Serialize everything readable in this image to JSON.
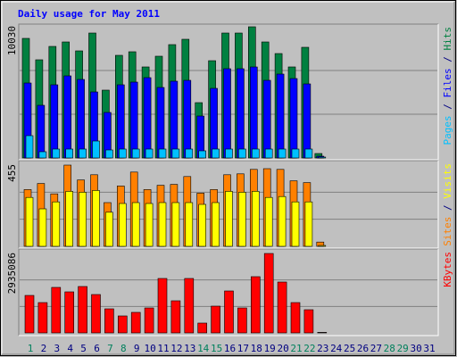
{
  "title": "Daily usage for May 2011",
  "chart_data": [
    {
      "type": "bar",
      "ylim": [
        0,
        10030
      ],
      "yticks": [
        10030
      ],
      "series": [
        {
          "name": "Pages",
          "color": "#00C0FF",
          "values": [
            1706,
            478,
            682,
            682,
            682,
            1296,
            614,
            682,
            682,
            682,
            682,
            682,
            682,
            546,
            682,
            682,
            682,
            682,
            682,
            682,
            682,
            682,
            68,
            0,
            0,
            0,
            0,
            0,
            0,
            0,
            0
          ]
        },
        {
          "name": "Files",
          "color": "#0000FF",
          "values": [
            5731,
            4026,
            5595,
            6277,
            6004,
            5049,
            3480,
            5595,
            5800,
            6141,
            5390,
            5868,
            5936,
            3207,
            5322,
            6823,
            6823,
            6959,
            5936,
            6414,
            6072,
            5663,
            136,
            0,
            0,
            0,
            0,
            0,
            0,
            0,
            0
          ]
        },
        {
          "name": "Hits",
          "color": "#008040",
          "values": [
            9143,
            7506,
            8529,
            8870,
            8188,
            9552,
            5186,
            7847,
            8120,
            6960,
            7779,
            8666,
            9075,
            4230,
            7437,
            9552,
            9552,
            10030,
            8870,
            7983,
            6960,
            8461,
            341,
            0,
            0,
            0,
            0,
            0,
            0,
            0,
            0
          ]
        }
      ]
    },
    {
      "type": "bar",
      "ylim": [
        0,
        455
      ],
      "yticks": [
        455
      ],
      "series": [
        {
          "name": "Sites",
          "color": "#FF8000",
          "values": [
            318,
            352,
            294,
            455,
            372,
            401,
            245,
            338,
            416,
            318,
            342,
            347,
            391,
            298,
            318,
            401,
            406,
            431,
            435,
            431,
            367,
            357,
            24,
            0,
            0,
            0,
            0,
            0,
            0,
            0,
            0
          ]
        },
        {
          "name": "Visits",
          "color": "#FFFF00",
          "values": [
            274,
            210,
            249,
            308,
            303,
            313,
            191,
            240,
            245,
            240,
            245,
            245,
            245,
            235,
            245,
            308,
            303,
            308,
            274,
            279,
            249,
            249,
            5,
            0,
            0,
            0,
            0,
            0,
            0,
            0,
            0
          ]
        }
      ]
    },
    {
      "type": "bar",
      "ylim": [
        0,
        2935086
      ],
      "yticks": [
        2935086
      ],
      "categories": [
        "1",
        "2",
        "3",
        "4",
        "5",
        "6",
        "7",
        "8",
        "9",
        "10",
        "11",
        "12",
        "13",
        "14",
        "15",
        "16",
        "17",
        "18",
        "19",
        "20",
        "21",
        "22",
        "23",
        "24",
        "25",
        "26",
        "27",
        "28",
        "29",
        "30",
        "31"
      ],
      "category_colors": [
        "#00805C",
        "#000080",
        "#000080",
        "#000080",
        "#000080",
        "#000080",
        "#00805C",
        "#00805C",
        "#000080",
        "#000080",
        "#000080",
        "#000080",
        "#000080",
        "#00805C",
        "#00805C",
        "#000080",
        "#000080",
        "#000080",
        "#000080",
        "#000080",
        "#00805C",
        "#00805C",
        "#000080",
        "#000080",
        "#000080",
        "#000080",
        "#000080",
        "#00805C",
        "#00805C",
        "#000080",
        "#000080"
      ],
      "series": [
        {
          "name": "KBytes",
          "color": "#FF0000",
          "values": [
            1385000,
            1121000,
            1682000,
            1517000,
            1715000,
            1418000,
            890000,
            627000,
            759000,
            923000,
            2012000,
            1187000,
            2012000,
            363000,
            989000,
            1550000,
            923000,
            2078000,
            2935086,
            1880000,
            1121000,
            857000,
            20000,
            0,
            0,
            0,
            0,
            0,
            0,
            0,
            0
          ]
        }
      ]
    }
  ]
}
